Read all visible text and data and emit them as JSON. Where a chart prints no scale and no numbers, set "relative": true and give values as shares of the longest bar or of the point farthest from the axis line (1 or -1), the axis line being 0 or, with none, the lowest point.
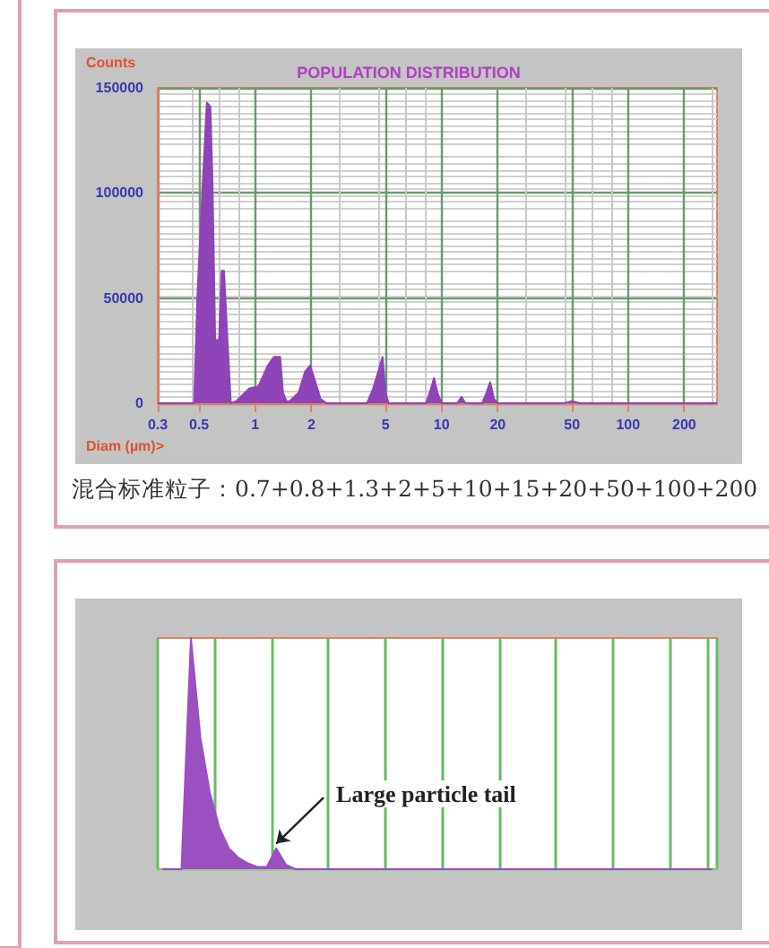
{
  "chart_data": [
    {
      "type": "area",
      "title": "POPULATION DISTRIBUTION",
      "ylabel": "Counts",
      "xlabel": "Diam (µm)>",
      "log": "x",
      "xlim": [
        0.3,
        300
      ],
      "xticks": [
        0.3,
        0.5,
        1,
        2,
        5,
        10,
        20,
        50,
        100,
        200
      ],
      "ylim": [
        0,
        150000
      ],
      "yticks": [
        0,
        50000,
        100000,
        150000
      ],
      "grid": true,
      "series": [
        {
          "color": "#8e44b8",
          "x": [
            0.3,
            0.47,
            0.49,
            0.52,
            0.55,
            0.575,
            0.59,
            0.61,
            0.64,
            0.66,
            0.68,
            0.71,
            0.74,
            0.79,
            0.93,
            1.04,
            1.17,
            1.26,
            1.36,
            1.41,
            1.47,
            1.53,
            1.71,
            1.85,
            1.97,
            2.07,
            2.24,
            2.42,
            3.98,
            4.29,
            4.57,
            4.82,
            5.0,
            5.2,
            8.25,
            8.7,
            9.1,
            9.5,
            10,
            12.1,
            12.8,
            13.4,
            16.5,
            17.4,
            18.2,
            19.1,
            20,
            45,
            50,
            55,
            300
          ],
          "values": [
            0,
            0,
            52000,
            100000,
            143000,
            141000,
            105000,
            30000,
            30000,
            63000,
            63000,
            30000,
            0,
            1000,
            7000,
            8000,
            18000,
            22000,
            22000,
            5000,
            1000,
            1000,
            5000,
            15000,
            18000,
            12000,
            2000,
            0,
            0,
            7000,
            15000,
            22000,
            5000,
            0,
            0,
            6000,
            12000,
            5000,
            0,
            0,
            3000,
            0,
            0,
            5000,
            10000,
            2000,
            0,
            0,
            1000,
            0,
            0
          ]
        }
      ],
      "annotations": [
        "混合标准粒子：0.7+0.8+1.3+2+5+10+15+20+50+100+200"
      ]
    },
    {
      "type": "area",
      "relative": true,
      "grid": "x",
      "categories": [
        null,
        null,
        null,
        null,
        null,
        null,
        null,
        null,
        null,
        null,
        null,
        null,
        null,
        null,
        null,
        null,
        null,
        null,
        null,
        null,
        null,
        null,
        null,
        null,
        null,
        null,
        null,
        null,
        null,
        null,
        null,
        null,
        null,
        null,
        null,
        null,
        null,
        null,
        null,
        null,
        null,
        null,
        null,
        null,
        null,
        null,
        null,
        null,
        null,
        null,
        null,
        null,
        null,
        null,
        null,
        null,
        null,
        null,
        null
      ],
      "series": [
        {
          "color": "#9b4fc0",
          "values": [
            0,
            0,
            0,
            1,
            0.57,
            0.33,
            0.18,
            0.09,
            0.05,
            0.025,
            0.01,
            0.01,
            0.09,
            0.02,
            0,
            0,
            0,
            0,
            0,
            0,
            0,
            0,
            0,
            0,
            0,
            0,
            0,
            0,
            0,
            0,
            0,
            0,
            0,
            0,
            0,
            0,
            0,
            0,
            0,
            0,
            0,
            0,
            0,
            0,
            0,
            0,
            0,
            0,
            0,
            0,
            0,
            0,
            0,
            0,
            0,
            0,
            0,
            0,
            0
          ]
        }
      ],
      "annotations": [
        "Large particle tail"
      ]
    }
  ]
}
